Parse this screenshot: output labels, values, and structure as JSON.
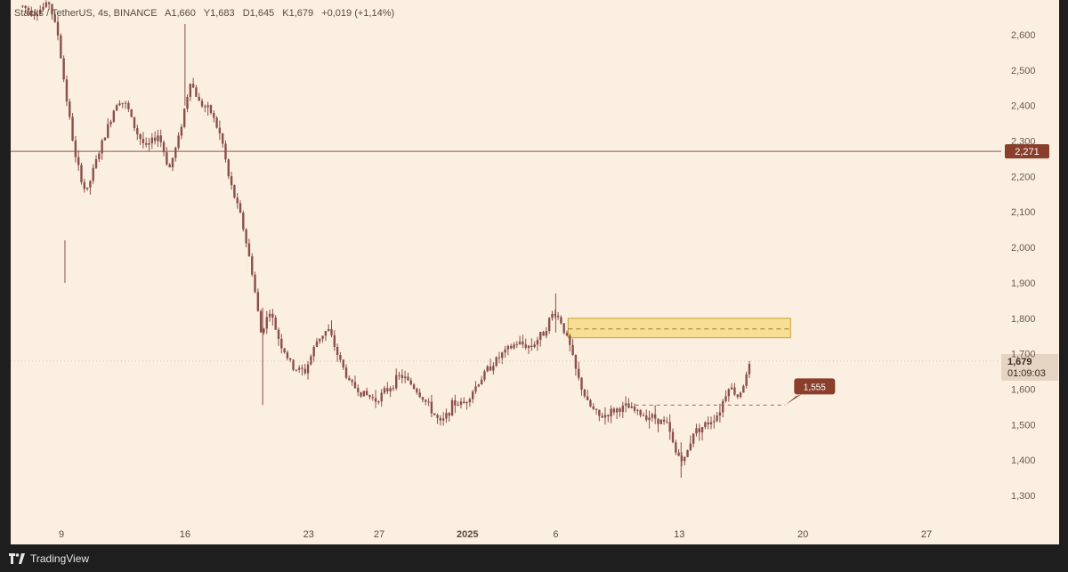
{
  "header": {
    "symbol": "Stacks / TetherUS, 4s, BINANCE",
    "open": "A1,660",
    "high": "Y1,683",
    "low": "D1,645",
    "close": "K1,679",
    "change": "+0,019 (+1,14%)"
  },
  "footer": {
    "brand": "TradingView"
  },
  "colors": {
    "background": "#fbefe1",
    "candle": "#8a4f4a",
    "price_label": "#8a3e2c",
    "zone_fill": "#f5d87a",
    "zone_border": "#c9a22b"
  },
  "chart_data": {
    "type": "candlestick",
    "symbol": "Stacks / TetherUS",
    "interval": "4s",
    "exchange": "BINANCE",
    "y_ticks": [
      "2,600",
      "2,500",
      "2,400",
      "2,300",
      "2,200",
      "2,100",
      "2,000",
      "1,900",
      "1,800",
      "1,700",
      "1,600",
      "1,500",
      "1,400",
      "1,300"
    ],
    "y_tick_values": [
      2600,
      2500,
      2400,
      2300,
      2200,
      2100,
      2000,
      1900,
      1800,
      1700,
      1600,
      1500,
      1400,
      1300
    ],
    "x_ticks": [
      {
        "label": "9",
        "day": 9
      },
      {
        "label": "16",
        "day": 16
      },
      {
        "label": "23",
        "day": 23
      },
      {
        "label": "27",
        "day": 27
      },
      {
        "label": "2025",
        "day": 32,
        "bold": true
      },
      {
        "label": "6",
        "day": 37
      },
      {
        "label": "13",
        "day": 44
      },
      {
        "label": "20",
        "day": 51
      },
      {
        "label": "27",
        "day": 58
      }
    ],
    "price_path": [
      [
        6.8,
        2680
      ],
      [
        7.5,
        2660
      ],
      [
        8.3,
        2690
      ],
      [
        8.8,
        2600
      ],
      [
        9.2,
        2450
      ],
      [
        9.8,
        2250
      ],
      [
        10.4,
        2150
      ],
      [
        11.0,
        2250
      ],
      [
        11.7,
        2350
      ],
      [
        12.2,
        2420
      ],
      [
        12.7,
        2400
      ],
      [
        13.2,
        2330
      ],
      [
        13.8,
        2280
      ],
      [
        14.5,
        2320
      ],
      [
        15.1,
        2220
      ],
      [
        15.6,
        2300
      ],
      [
        16.3,
        2470
      ],
      [
        16.8,
        2410
      ],
      [
        17.5,
        2380
      ],
      [
        18.1,
        2300
      ],
      [
        18.5,
        2190
      ],
      [
        19.2,
        2080
      ],
      [
        19.8,
        1930
      ],
      [
        20.3,
        1760
      ],
      [
        20.8,
        1820
      ],
      [
        21.4,
        1730
      ],
      [
        22.1,
        1660
      ],
      [
        22.8,
        1650
      ],
      [
        23.5,
        1740
      ],
      [
        24.1,
        1770
      ],
      [
        24.7,
        1690
      ],
      [
        25.3,
        1620
      ],
      [
        26.0,
        1590
      ],
      [
        26.8,
        1570
      ],
      [
        27.5,
        1600
      ],
      [
        28.2,
        1640
      ],
      [
        28.9,
        1610
      ],
      [
        29.7,
        1560
      ],
      [
        30.5,
        1500
      ],
      [
        31.2,
        1560
      ],
      [
        31.8,
        1560
      ],
      [
        32.5,
        1610
      ],
      [
        33.2,
        1660
      ],
      [
        34.0,
        1700
      ],
      [
        34.8,
        1730
      ],
      [
        35.6,
        1720
      ],
      [
        36.3,
        1760
      ],
      [
        36.9,
        1820
      ],
      [
        37.3,
        1790
      ],
      [
        37.8,
        1720
      ],
      [
        38.2,
        1640
      ],
      [
        38.8,
        1560
      ],
      [
        39.5,
        1520
      ],
      [
        40.3,
        1540
      ],
      [
        41.0,
        1550
      ],
      [
        41.8,
        1530
      ],
      [
        42.6,
        1520
      ],
      [
        43.3,
        1500
      ],
      [
        43.8,
        1420
      ],
      [
        44.3,
        1400
      ],
      [
        44.8,
        1480
      ],
      [
        45.5,
        1500
      ],
      [
        46.2,
        1530
      ],
      [
        46.8,
        1610
      ],
      [
        47.3,
        1580
      ],
      [
        47.7,
        1620
      ],
      [
        48.0,
        1670
      ],
      [
        48.1,
        1679
      ]
    ],
    "horizontal_line": {
      "value": 2271,
      "label": "2,271"
    },
    "current_price": {
      "value": 1679,
      "label": "1,679",
      "countdown": "01:09:03"
    },
    "zone": {
      "from_day": 37.7,
      "to_day": 50.3,
      "low": 1745,
      "high": 1800,
      "mid": 1770
    },
    "target": {
      "value": 1555,
      "label": "1,555",
      "from_day": 41.5,
      "to_day": 50.0
    },
    "ylim": [
      1260,
      2700
    ],
    "xlim": [
      5.2,
      61.0
    ]
  }
}
